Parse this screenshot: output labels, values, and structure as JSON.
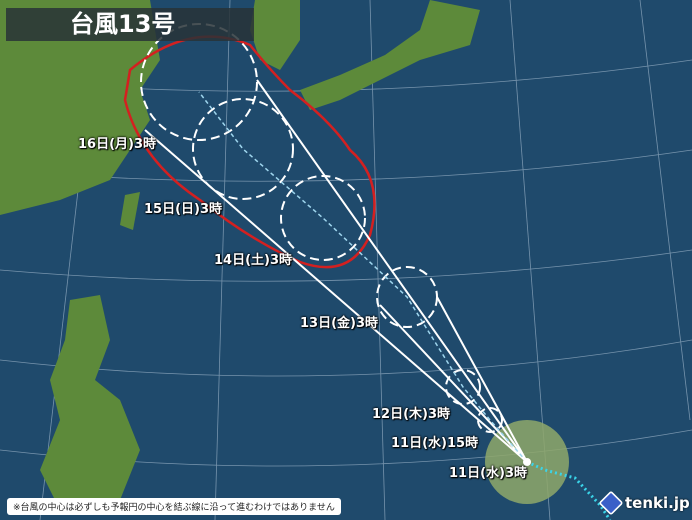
{
  "title": "台風13号",
  "forecast_labels": [
    {
      "text": "16日(月)3時"
    },
    {
      "text": "15日(日)3時"
    },
    {
      "text": "14日(土)3時"
    },
    {
      "text": "13日(金)3時"
    },
    {
      "text": "12日(木)3時"
    },
    {
      "text": "11日(水)15時"
    },
    {
      "text": "11日(水)3時"
    }
  ],
  "note": "※台風の中心は必ずしも予報円の中心を結ぶ線に沿って進むわけではありません",
  "logo": "tenki.jp",
  "colors": {
    "ocean": "#1f4a6c",
    "land": "#5d8a3a",
    "storm_warning_area": "#d42020",
    "strong_wind_area": "#8fa86a",
    "forecast_circle": "#ffffff",
    "past_track": "#3ad4e8"
  }
}
